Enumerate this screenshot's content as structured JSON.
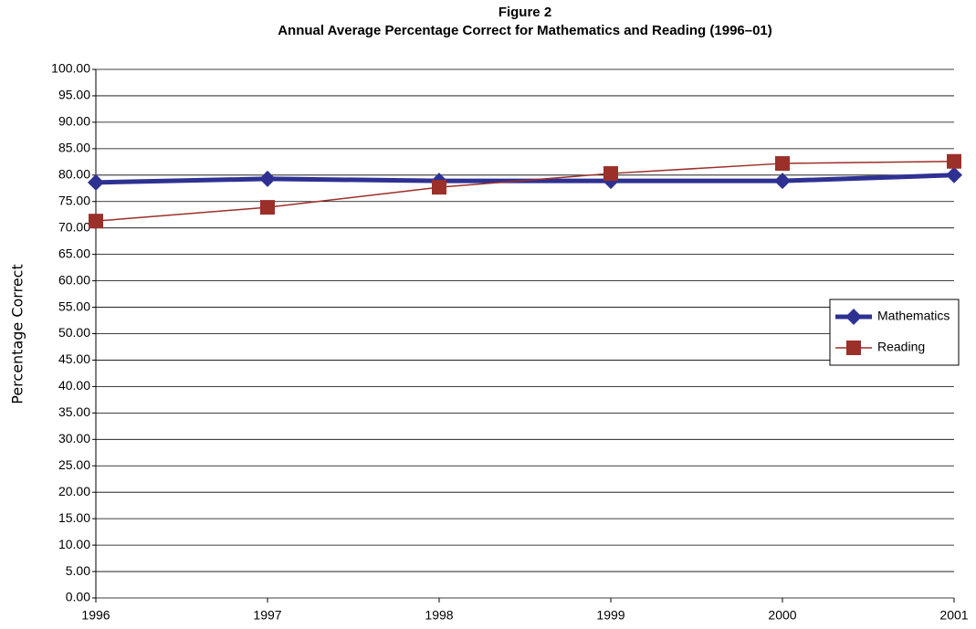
{
  "chart_data": {
    "type": "line",
    "title": "Figure 2",
    "subtitle": "Annual Average Percentage Correct for Mathematics and Reading (1996–01)",
    "ylabel": "Percentage  Correct",
    "x": [
      1996,
      1997,
      1998,
      1999,
      2000,
      2001
    ],
    "xlim": [
      1996,
      2001
    ],
    "xticks": [
      1996,
      1997,
      1998,
      1999,
      2000,
      2001
    ],
    "ylim": [
      0,
      100
    ],
    "yticks": [
      {
        "value": 0,
        "label": "0.00"
      },
      {
        "value": 5,
        "label": "5.00"
      },
      {
        "value": 10,
        "label": "10.00"
      },
      {
        "value": 15,
        "label": "15.00"
      },
      {
        "value": 20,
        "label": "20.00"
      },
      {
        "value": 25,
        "label": "25.00"
      },
      {
        "value": 30,
        "label": "30.00"
      },
      {
        "value": 35,
        "label": "35.00"
      },
      {
        "value": 40,
        "label": "40.00"
      },
      {
        "value": 45,
        "label": "45.00"
      },
      {
        "value": 50,
        "label": "50.00"
      },
      {
        "value": 55,
        "label": "55.00"
      },
      {
        "value": 60,
        "label": "60.00"
      },
      {
        "value": 65,
        "label": "65.00"
      },
      {
        "value": 70,
        "label": "70.00"
      },
      {
        "value": 75,
        "label": "75.00"
      },
      {
        "value": 80,
        "label": "80.00"
      },
      {
        "value": 85,
        "label": "85.00"
      },
      {
        "value": 90,
        "label": "90.00"
      },
      {
        "value": 95,
        "label": "95.00"
      },
      {
        "value": 100,
        "label": "100.00"
      }
    ],
    "grid": true,
    "legend": "right",
    "series": [
      {
        "name": "Mathematics",
        "color": "#2e3192",
        "marker": "diamond",
        "values": [
          78.6,
          79.3,
          78.9,
          78.9,
          78.9,
          80.0
        ]
      },
      {
        "name": "Reading",
        "color": "#9b2f2a",
        "marker": "square",
        "values": [
          71.3,
          73.9,
          77.7,
          80.3,
          82.2,
          82.6
        ]
      }
    ]
  }
}
